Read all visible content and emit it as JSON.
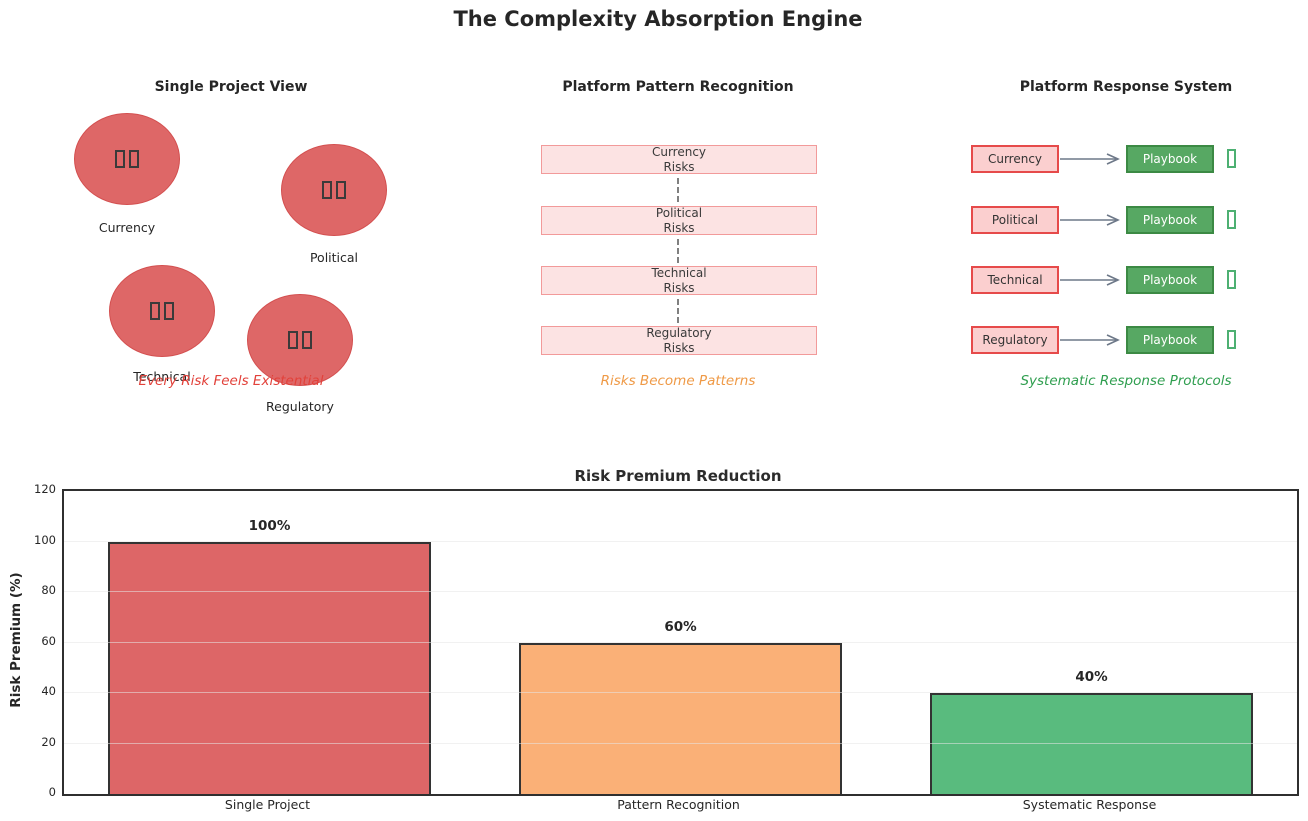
{
  "main_title": "The Complexity Absorption Engine",
  "panels": {
    "single": {
      "title": "Single Project View",
      "risks": [
        "Currency",
        "Political",
        "Technical",
        "Regulatory"
      ],
      "caption": "Every Risk Feels Existential",
      "caption_color": "#e2413a",
      "circle_fill": "#de6767",
      "circle_border": "#d34f4f",
      "circle_icon": "missing-emoji-tofu-pair"
    },
    "pattern": {
      "title": "Platform Pattern Recognition",
      "boxes": [
        {
          "line1": "Currency",
          "line2": "Risks"
        },
        {
          "line1": "Political",
          "line2": "Risks"
        },
        {
          "line1": "Technical",
          "line2": "Risks"
        },
        {
          "line1": "Regulatory",
          "line2": "Risks"
        }
      ],
      "caption": "Risks Become Patterns",
      "caption_color": "#ef9a47",
      "box_fill": "#fce3e3",
      "box_border": "#f29a9a"
    },
    "response": {
      "title": "Platform Response System",
      "rows": [
        "Currency",
        "Political",
        "Technical",
        "Regulatory"
      ],
      "playbook_label": "Playbook",
      "caption": "Systematic Response Protocols",
      "caption_color": "#2f9e4f",
      "pink_fill": "#fbcfcf",
      "pink_border": "#e64a4a",
      "green_fill": "#57a863",
      "green_border": "#3c8a44",
      "row_icon": "missing-emoji-tofu-green"
    }
  },
  "chart_data": {
    "type": "bar",
    "title": "Risk Premium Reduction",
    "categories": [
      "Single Project",
      "Pattern Recognition",
      "Systematic Response"
    ],
    "values": [
      100,
      60,
      40
    ],
    "value_labels": [
      "100%",
      "60%",
      "40%"
    ],
    "colors": [
      "#dd6667",
      "#fab077",
      "#59bb7e"
    ],
    "bar_edge_color": "#333333",
    "xlabel": "",
    "ylabel": "Risk Premium (%)",
    "ylim": [
      0,
      120
    ],
    "yticks": [
      0,
      20,
      40,
      60,
      80,
      100,
      120
    ],
    "grid": true,
    "legend": "none"
  }
}
